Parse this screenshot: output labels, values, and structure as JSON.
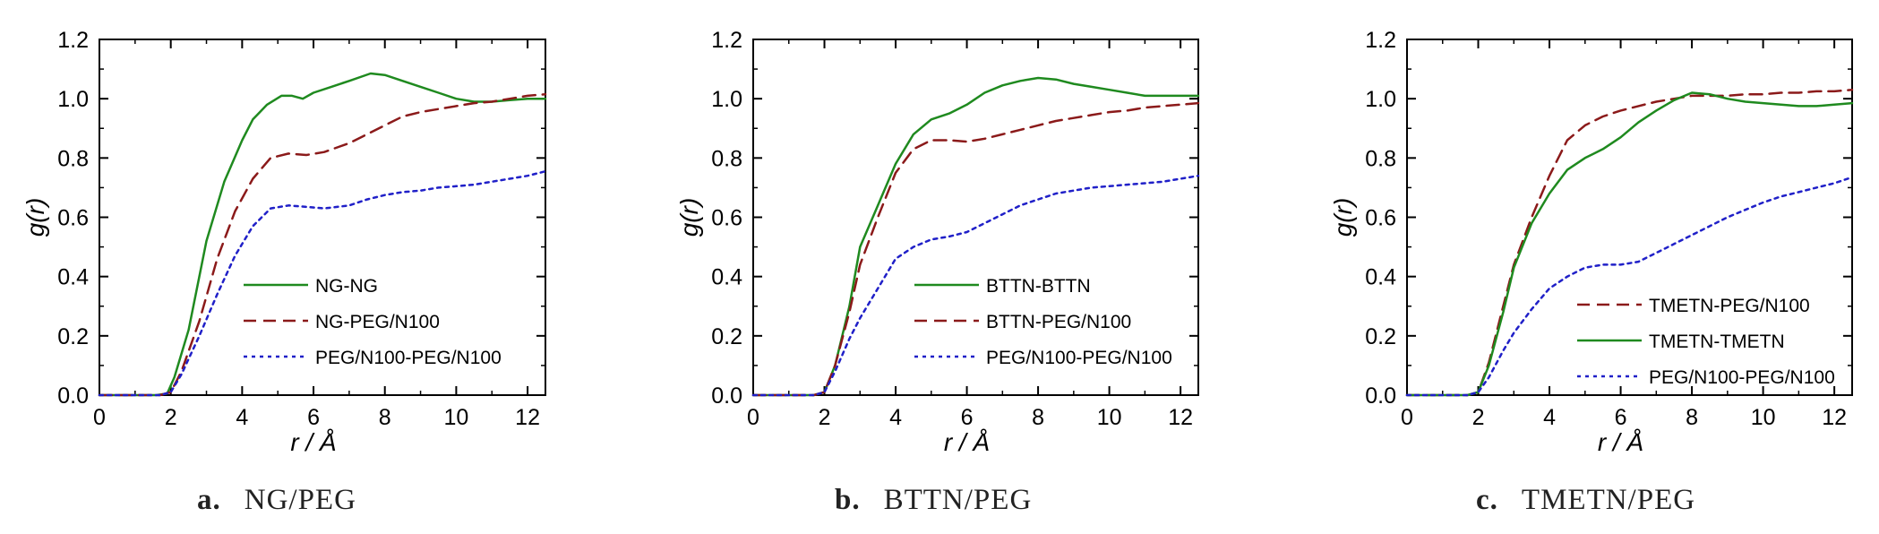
{
  "figure_captions": [
    {
      "letter": "a.",
      "text": "NG/PEG"
    },
    {
      "letter": "b.",
      "text": "BTTN/PEG"
    },
    {
      "letter": "c.",
      "text": "TMETN/PEG"
    }
  ],
  "colors": {
    "green": "#1f8a1f",
    "darkred": "#8b1a1a",
    "blue": "#2020c8",
    "axis": "#000000"
  },
  "chart_data": [
    {
      "type": "line",
      "xlabel": "r / Å",
      "ylabel": "g(r)",
      "xlim": [
        0,
        12.5
      ],
      "ylim": [
        0,
        1.2
      ],
      "x_ticks": [
        "0",
        "2",
        "4",
        "6",
        "8",
        "10",
        "12"
      ],
      "y_ticks": [
        "0.0",
        "0.2",
        "0.4",
        "0.6",
        "0.8",
        "1.0",
        "1.2"
      ],
      "legend_position": "lower-right",
      "series": [
        {
          "name": "NG-NG",
          "color": "green",
          "style": "solid",
          "points": [
            [
              0,
              0
            ],
            [
              1.6,
              0
            ],
            [
              1.9,
              0.005
            ],
            [
              2.1,
              0.06
            ],
            [
              2.5,
              0.22
            ],
            [
              3.0,
              0.52
            ],
            [
              3.5,
              0.72
            ],
            [
              4.0,
              0.86
            ],
            [
              4.3,
              0.93
            ],
            [
              4.7,
              0.98
            ],
            [
              5.1,
              1.01
            ],
            [
              5.4,
              1.01
            ],
            [
              5.7,
              1.0
            ],
            [
              6.0,
              1.02
            ],
            [
              6.5,
              1.04
            ],
            [
              7.0,
              1.06
            ],
            [
              7.6,
              1.085
            ],
            [
              8.0,
              1.08
            ],
            [
              8.5,
              1.06
            ],
            [
              9.0,
              1.04
            ],
            [
              9.5,
              1.02
            ],
            [
              10.0,
              1.0
            ],
            [
              10.5,
              0.99
            ],
            [
              11.0,
              0.99
            ],
            [
              11.5,
              0.995
            ],
            [
              12.0,
              1.0
            ],
            [
              12.5,
              1.0
            ]
          ]
        },
        {
          "name": "NG-PEG/N100",
          "color": "darkred",
          "style": "dashed",
          "points": [
            [
              0,
              0
            ],
            [
              1.7,
              0
            ],
            [
              2.0,
              0.01
            ],
            [
              2.3,
              0.08
            ],
            [
              2.8,
              0.25
            ],
            [
              3.3,
              0.46
            ],
            [
              3.8,
              0.62
            ],
            [
              4.3,
              0.73
            ],
            [
              4.8,
              0.8
            ],
            [
              5.3,
              0.815
            ],
            [
              5.8,
              0.81
            ],
            [
              6.3,
              0.82
            ],
            [
              7.0,
              0.85
            ],
            [
              7.5,
              0.88
            ],
            [
              8.0,
              0.91
            ],
            [
              8.5,
              0.94
            ],
            [
              9.0,
              0.955
            ],
            [
              9.5,
              0.965
            ],
            [
              10.0,
              0.975
            ],
            [
              10.5,
              0.985
            ],
            [
              11.0,
              0.99
            ],
            [
              11.5,
              1.0
            ],
            [
              12.0,
              1.01
            ],
            [
              12.5,
              1.015
            ]
          ]
        },
        {
          "name": "PEG/N100-PEG/N100",
          "color": "blue",
          "style": "dotted",
          "points": [
            [
              0,
              0
            ],
            [
              1.7,
              0
            ],
            [
              2.0,
              0.01
            ],
            [
              2.3,
              0.07
            ],
            [
              2.8,
              0.2
            ],
            [
              3.3,
              0.34
            ],
            [
              3.8,
              0.47
            ],
            [
              4.3,
              0.57
            ],
            [
              4.8,
              0.63
            ],
            [
              5.3,
              0.64
            ],
            [
              5.8,
              0.635
            ],
            [
              6.3,
              0.63
            ],
            [
              7.0,
              0.64
            ],
            [
              7.5,
              0.66
            ],
            [
              8.0,
              0.675
            ],
            [
              8.5,
              0.685
            ],
            [
              9.0,
              0.69
            ],
            [
              9.5,
              0.7
            ],
            [
              10.0,
              0.705
            ],
            [
              10.5,
              0.71
            ],
            [
              11.0,
              0.72
            ],
            [
              11.5,
              0.73
            ],
            [
              12.0,
              0.74
            ],
            [
              12.5,
              0.755
            ]
          ]
        }
      ]
    },
    {
      "type": "line",
      "xlabel": "r / Å",
      "ylabel": "g(r)",
      "xlim": [
        0,
        12.5
      ],
      "ylim": [
        0,
        1.2
      ],
      "x_ticks": [
        "0",
        "2",
        "4",
        "6",
        "8",
        "10",
        "12"
      ],
      "y_ticks": [
        "0.0",
        "0.2",
        "0.4",
        "0.6",
        "0.8",
        "1.0",
        "1.2"
      ],
      "legend_position": "lower-right",
      "series": [
        {
          "name": "BTTN-BTTN",
          "color": "green",
          "style": "solid",
          "points": [
            [
              0,
              0
            ],
            [
              1.7,
              0
            ],
            [
              2.0,
              0.01
            ],
            [
              2.3,
              0.1
            ],
            [
              2.7,
              0.3
            ],
            [
              3.0,
              0.5
            ],
            [
              3.5,
              0.64
            ],
            [
              4.0,
              0.78
            ],
            [
              4.5,
              0.88
            ],
            [
              5.0,
              0.93
            ],
            [
              5.5,
              0.95
            ],
            [
              6.0,
              0.98
            ],
            [
              6.5,
              1.02
            ],
            [
              7.0,
              1.045
            ],
            [
              7.5,
              1.06
            ],
            [
              8.0,
              1.07
            ],
            [
              8.5,
              1.065
            ],
            [
              9.0,
              1.05
            ],
            [
              9.5,
              1.04
            ],
            [
              10.0,
              1.03
            ],
            [
              10.5,
              1.02
            ],
            [
              11.0,
              1.01
            ],
            [
              11.5,
              1.01
            ],
            [
              12.0,
              1.01
            ],
            [
              12.5,
              1.01
            ]
          ]
        },
        {
          "name": "BTTN-PEG/N100",
          "color": "darkred",
          "style": "dashed",
          "points": [
            [
              0,
              0
            ],
            [
              1.7,
              0
            ],
            [
              2.0,
              0.01
            ],
            [
              2.3,
              0.1
            ],
            [
              2.7,
              0.28
            ],
            [
              3.0,
              0.44
            ],
            [
              3.5,
              0.6
            ],
            [
              4.0,
              0.75
            ],
            [
              4.5,
              0.83
            ],
            [
              5.0,
              0.86
            ],
            [
              5.5,
              0.86
            ],
            [
              6.0,
              0.855
            ],
            [
              6.5,
              0.865
            ],
            [
              7.0,
              0.88
            ],
            [
              7.5,
              0.895
            ],
            [
              8.0,
              0.91
            ],
            [
              8.5,
              0.925
            ],
            [
              9.0,
              0.935
            ],
            [
              9.5,
              0.945
            ],
            [
              10.0,
              0.955
            ],
            [
              10.5,
              0.96
            ],
            [
              11.0,
              0.97
            ],
            [
              11.5,
              0.975
            ],
            [
              12.0,
              0.98
            ],
            [
              12.5,
              0.985
            ]
          ]
        },
        {
          "name": "PEG/N100-PEG/N100",
          "color": "blue",
          "style": "dotted",
          "points": [
            [
              0,
              0
            ],
            [
              1.7,
              0
            ],
            [
              2.0,
              0.01
            ],
            [
              2.3,
              0.08
            ],
            [
              2.7,
              0.19
            ],
            [
              3.0,
              0.26
            ],
            [
              3.5,
              0.36
            ],
            [
              4.0,
              0.46
            ],
            [
              4.5,
              0.5
            ],
            [
              5.0,
              0.525
            ],
            [
              5.5,
              0.535
            ],
            [
              6.0,
              0.55
            ],
            [
              6.5,
              0.58
            ],
            [
              7.0,
              0.61
            ],
            [
              7.5,
              0.64
            ],
            [
              8.0,
              0.66
            ],
            [
              8.5,
              0.68
            ],
            [
              9.0,
              0.69
            ],
            [
              9.5,
              0.7
            ],
            [
              10.0,
              0.705
            ],
            [
              10.5,
              0.71
            ],
            [
              11.0,
              0.715
            ],
            [
              11.5,
              0.72
            ],
            [
              12.0,
              0.73
            ],
            [
              12.5,
              0.74
            ]
          ]
        }
      ]
    },
    {
      "type": "line",
      "xlabel": "r / Å",
      "ylabel": "g(r)",
      "xlim": [
        0,
        12.5
      ],
      "ylim": [
        0,
        1.2
      ],
      "x_ticks": [
        "0",
        "2",
        "4",
        "6",
        "8",
        "10",
        "12"
      ],
      "y_ticks": [
        "0.0",
        "0.2",
        "0.4",
        "0.6",
        "0.8",
        "1.0",
        "1.2"
      ],
      "legend_position": "lower-right",
      "series": [
        {
          "name": "TMETN-PEG/N100",
          "color": "darkred",
          "style": "dashed",
          "points": [
            [
              0,
              0
            ],
            [
              1.7,
              0
            ],
            [
              2.0,
              0.01
            ],
            [
              2.3,
              0.11
            ],
            [
              2.7,
              0.3
            ],
            [
              3.0,
              0.44
            ],
            [
              3.5,
              0.6
            ],
            [
              4.0,
              0.74
            ],
            [
              4.5,
              0.86
            ],
            [
              5.0,
              0.91
            ],
            [
              5.5,
              0.94
            ],
            [
              6.0,
              0.96
            ],
            [
              6.5,
              0.975
            ],
            [
              7.0,
              0.99
            ],
            [
              7.5,
              1.0
            ],
            [
              8.0,
              1.01
            ],
            [
              8.5,
              1.01
            ],
            [
              9.0,
              1.01
            ],
            [
              9.5,
              1.015
            ],
            [
              10.0,
              1.015
            ],
            [
              10.5,
              1.02
            ],
            [
              11.0,
              1.02
            ],
            [
              11.5,
              1.025
            ],
            [
              12.0,
              1.025
            ],
            [
              12.5,
              1.03
            ]
          ]
        },
        {
          "name": "TMETN-TMETN",
          "color": "green",
          "style": "solid",
          "points": [
            [
              0,
              0
            ],
            [
              1.7,
              0
            ],
            [
              2.0,
              0.01
            ],
            [
              2.3,
              0.1
            ],
            [
              2.7,
              0.28
            ],
            [
              3.0,
              0.43
            ],
            [
              3.5,
              0.58
            ],
            [
              4.0,
              0.68
            ],
            [
              4.5,
              0.76
            ],
            [
              5.0,
              0.8
            ],
            [
              5.5,
              0.83
            ],
            [
              6.0,
              0.87
            ],
            [
              6.5,
              0.92
            ],
            [
              7.0,
              0.96
            ],
            [
              7.5,
              0.995
            ],
            [
              8.0,
              1.02
            ],
            [
              8.5,
              1.015
            ],
            [
              9.0,
              1.0
            ],
            [
              9.5,
              0.99
            ],
            [
              10.0,
              0.985
            ],
            [
              10.5,
              0.98
            ],
            [
              11.0,
              0.975
            ],
            [
              11.5,
              0.975
            ],
            [
              12.0,
              0.98
            ],
            [
              12.5,
              0.985
            ]
          ]
        },
        {
          "name": "PEG/N100-PEG/N100",
          "color": "blue",
          "style": "dotted",
          "points": [
            [
              0,
              0
            ],
            [
              1.7,
              0
            ],
            [
              2.0,
              0.01
            ],
            [
              2.3,
              0.06
            ],
            [
              2.7,
              0.15
            ],
            [
              3.0,
              0.21
            ],
            [
              3.5,
              0.29
            ],
            [
              4.0,
              0.36
            ],
            [
              4.5,
              0.4
            ],
            [
              5.0,
              0.43
            ],
            [
              5.5,
              0.44
            ],
            [
              6.0,
              0.44
            ],
            [
              6.5,
              0.45
            ],
            [
              7.0,
              0.48
            ],
            [
              7.5,
              0.51
            ],
            [
              8.0,
              0.54
            ],
            [
              8.5,
              0.57
            ],
            [
              9.0,
              0.6
            ],
            [
              9.5,
              0.625
            ],
            [
              10.0,
              0.65
            ],
            [
              10.5,
              0.67
            ],
            [
              11.0,
              0.685
            ],
            [
              11.5,
              0.7
            ],
            [
              12.0,
              0.715
            ],
            [
              12.5,
              0.735
            ]
          ]
        }
      ]
    }
  ]
}
